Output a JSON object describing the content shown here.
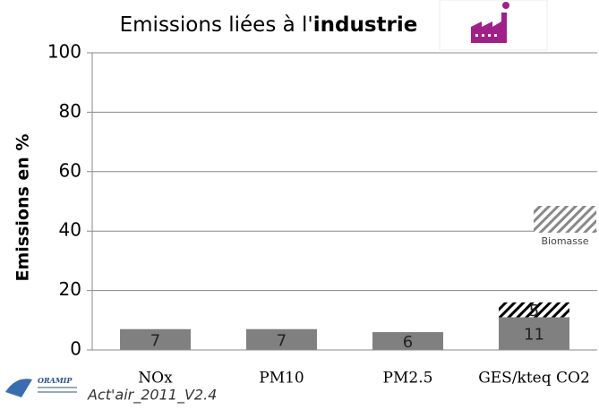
{
  "chart_data": {
    "type": "bar",
    "stacked": true,
    "title": [
      "Emissions liées à l'",
      "industrie"
    ],
    "y_label": "Emissions en %",
    "categories": [
      "NOx",
      "PM10",
      "PM2.5",
      "GES/kteq CO2"
    ],
    "series": [
      {
        "color": "#808080",
        "values": [
          7,
          7,
          6,
          11
        ]
      },
      {
        "name": "Biomasse",
        "color": "hatch",
        "values": [
          null,
          null,
          null,
          5
        ]
      }
    ],
    "ylim": [
      0,
      100
    ],
    "yticks": [
      0,
      20,
      40,
      60,
      80,
      100
    ],
    "grid": true,
    "footer": {
      "logo": "ORAMIP",
      "version": "Act'air_2011_V2.4"
    }
  }
}
